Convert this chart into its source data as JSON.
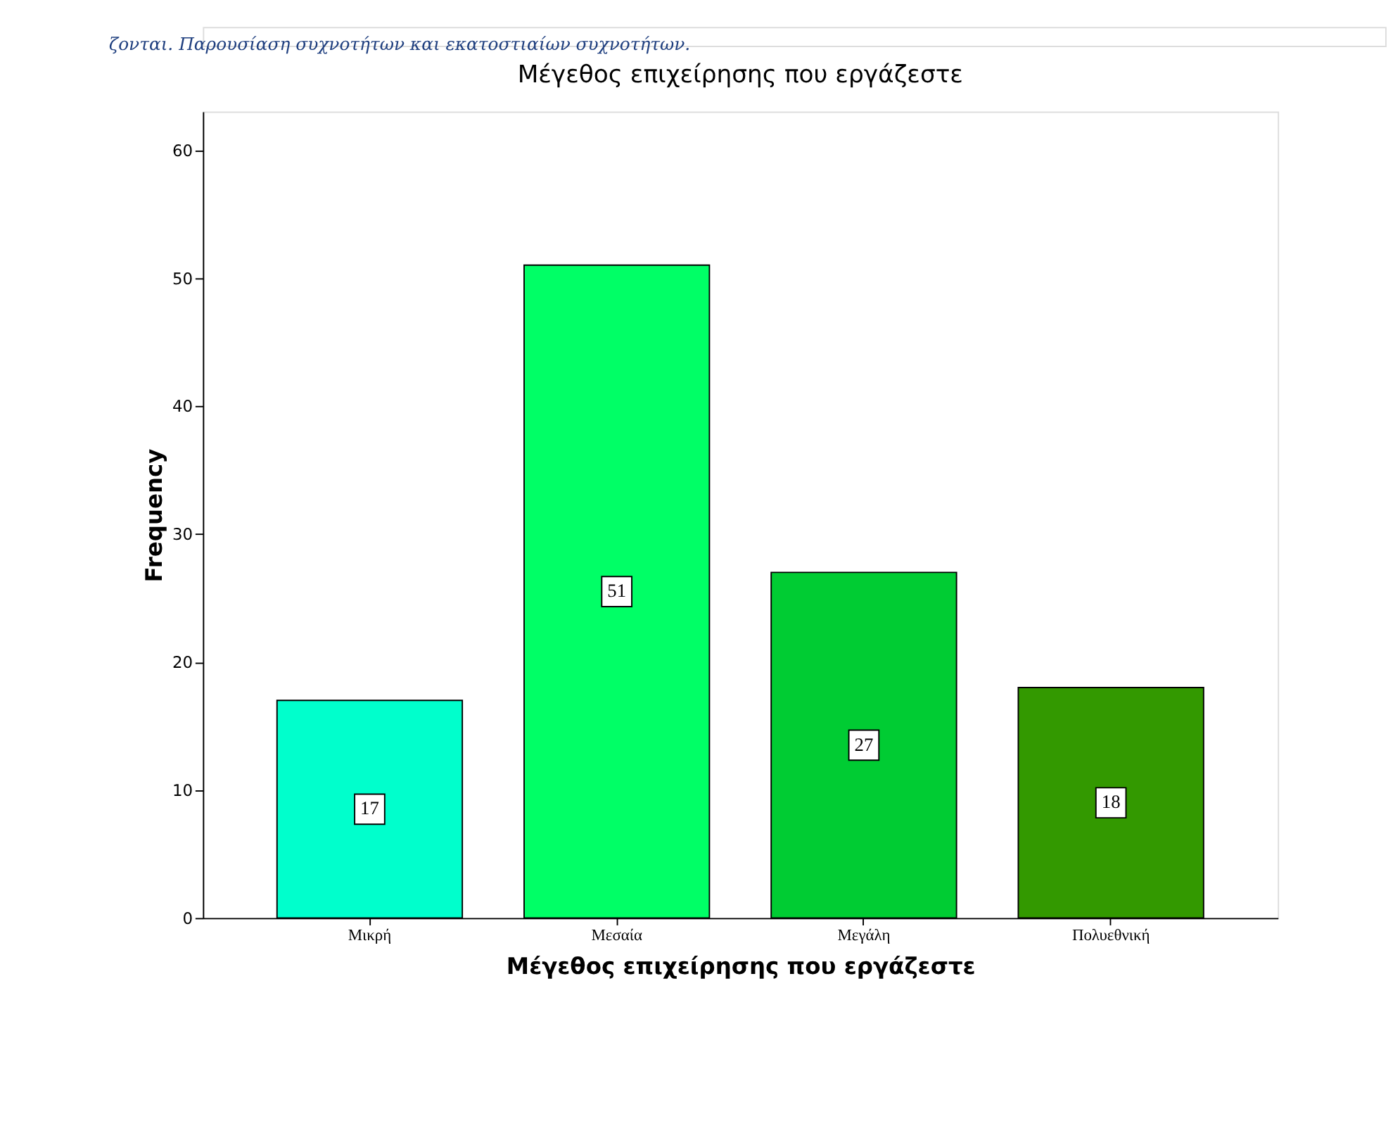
{
  "chart_data": {
    "type": "bar",
    "title": "Μέγεθος επιχείρησης που εργάζεστε",
    "xlabel": "Μέγεθος επιχείρησης που εργάζεστε",
    "ylabel": "Frequency",
    "categories": [
      "Μικρή",
      "Μεσαία",
      "Μεγάλη",
      "Πολυεθνική"
    ],
    "values": [
      17,
      51,
      27,
      18
    ],
    "colors": [
      "#00ffcc",
      "#00ff66",
      "#00cc33",
      "#339900"
    ],
    "ylim": [
      0,
      63
    ],
    "yticks": [
      0,
      10,
      20,
      30,
      40,
      50,
      60
    ],
    "grid": false,
    "data_labels": true,
    "annotations": [
      "ζονται. Παρουσίαση συχνοτήτων και εκατοστιαίων συχνοτήτων."
    ]
  }
}
